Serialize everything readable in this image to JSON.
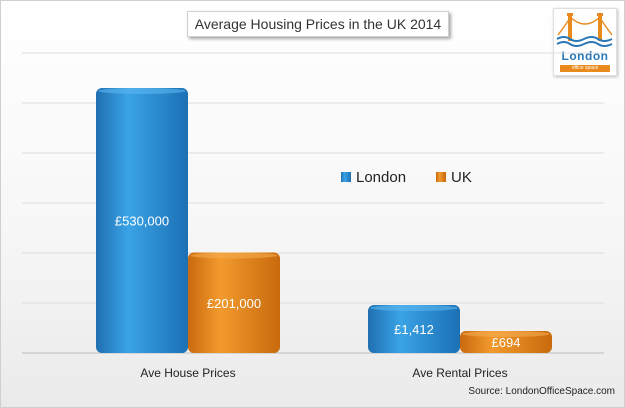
{
  "chart_data": {
    "type": "bar",
    "title": "Average Housing Prices in the UK 2014",
    "categories": [
      "Ave House Prices",
      "Ave Rental Prices"
    ],
    "series": [
      {
        "name": "London",
        "values": [
          530000,
          1412
        ],
        "labels": [
          "£530,000",
          "£1,412"
        ],
        "color": "#2f95d6"
      },
      {
        "name": "UK",
        "values": [
          201000,
          694
        ],
        "labels": [
          "£201,000",
          "£694"
        ],
        "color": "#e9871b"
      }
    ],
    "legend_position": "right",
    "grid": true
  },
  "logo": {
    "name": "London",
    "tagline": "office space"
  },
  "source": "Source: LondonOfficeSpace.com"
}
